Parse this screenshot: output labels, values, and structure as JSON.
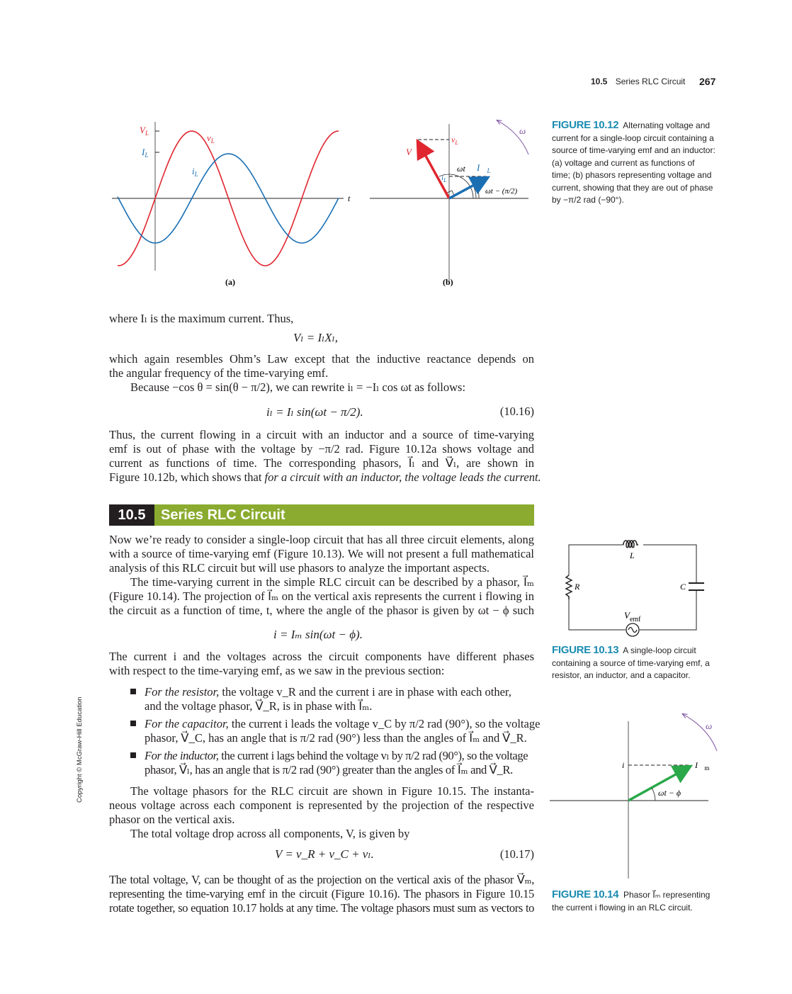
{
  "header": {
    "section": "10.5",
    "title": "Series RLC Circuit",
    "page": "267"
  },
  "fig1012": {
    "labels": {
      "VL": "V_L",
      "IL": "I_L",
      "vL": "v_L",
      "iL": "i_L",
      "t": "t",
      "a": "(a)",
      "b": "(b)",
      "omega": "ω",
      "vLb": "v_L",
      "VLvec": "V⃗_L",
      "ILvec": "I⃗_L",
      "iLb": "i_L",
      "wt": "ωt",
      "wtpi": "ωt − (π/2)"
    },
    "caption_label": "FIGURE",
    "caption_num": "10.12",
    "caption": [
      "Alternating voltage and",
      "current for a single-loop circuit containing a",
      "source of time-varying emf and an inductor:",
      "(a) voltage and current as functions of",
      "time; (b) phasors representing voltage and",
      "current, showing that they are out of phase",
      "by −π/2 rad (−90°)."
    ],
    "colors": {
      "voltage": "#e0262f",
      "current": "#1a6fb3",
      "omega": "#7b4fa0"
    }
  },
  "body": {
    "l1": "where Iₗ is the maximum current. Thus,",
    "eq1": "Vₗ = IₗXₗ,",
    "l2": "which again resembles Ohm’s Law except that the inductive reactance depends on",
    "l3": "the angular frequency of the time-varying emf.",
    "l4": "Because −cos θ = sin(θ − π/2), we can rewrite iₗ = −Iₗ cos ωt as follows:",
    "eq2": "iₗ = Iₗ sin(ωt − π/2).",
    "eq2num": "(10.16)",
    "l5": "Thus, the current flowing in a circuit with an inductor and a source of time-varying",
    "l6": "emf is out of phase with the voltage by −π/2 rad. Figure 10.12a shows voltage and",
    "l7": "current as functions of time. The corresponding phasors, I⃗ₗ and V⃗ₗ, are shown in",
    "l8a": "Figure 10.12b, which shows that ",
    "l8b": "for a circuit with an inductor, the voltage leads the current.",
    "s1": "Now we’re ready to consider a single-loop circuit that has all three circuit elements, along",
    "s2": "with a source of time-varying emf (Figure 10.13). We will not present a full mathematical",
    "s3": "analysis of this RLC circuit but will use phasors to analyze the important aspects.",
    "s4": "The time-varying current in the simple RLC circuit can be described by a phasor, I⃗ₘ",
    "s5": "(Figure 10.14). The projection of I⃗ₘ on the vertical axis represents the current i flowing in",
    "s6": "the circuit as a function of time, t, where the angle of the phasor is given by ωt − ϕ such that",
    "eq3": "i = Iₘ sin(ωt − ϕ).",
    "s7": "The current i and the voltages across the circuit components have different phases",
    "s8": "with respect to the time-varying emf, as we saw in the previous section:",
    "b1a": "For the resistor,",
    "b1b": " the voltage v_R and the current i are in phase with each other,",
    "b1c": "and the voltage phasor, V⃗_R, is in phase with I⃗ₘ.",
    "b2a": "For the capacitor,",
    "b2b": " the current i leads the voltage v_C by π/2 rad (90°), so the voltage",
    "b2c": "phasor, V⃗_C, has an angle that is π/2 rad (90°) less than the angles of I⃗ₘ and V⃗_R.",
    "b3a": "For the inductor,",
    "b3b": " the current i lags behind the voltage vₗ by π/2 rad (90°), so the voltage",
    "b3c": "phasor, V⃗ₗ, has an angle that is π/2 rad (90°) greater than the angles of I⃗ₘ and V⃗_R.",
    "s9": "The voltage phasors for the RLC circuit are shown in Figure 10.15. The instanta-",
    "s10": "neous voltage across each component is represented by the projection of the respective",
    "s11": "phasor on the vertical axis.",
    "s12": "The total voltage drop across all components, V, is given by",
    "eq4": "V = v_R + v_C + vₗ.",
    "eq4num": "(10.17)",
    "s13": "The total voltage, V, can be thought of as the projection on the vertical axis of the phasor V⃗ₘ,",
    "s14": "representing the time-varying emf in the circuit (Figure 10.16). The phasors in Figure 10.15",
    "s15": "rotate together, so equation 10.17 holds at any time. The voltage phasors must sum as vectors to"
  },
  "fig1013": {
    "labels": {
      "L": "L",
      "R": "R",
      "C": "C",
      "V": "V",
      "emf": "emf"
    },
    "caption_label": "FIGURE",
    "caption_num": "10.13",
    "caption": [
      "A single-loop circuit",
      "containing a source of time-varying emf, a",
      "resistor, an inductor, and a capacitor."
    ]
  },
  "fig1014": {
    "labels": {
      "i": "i",
      "Im": "I⃗ₘ",
      "omega": "ω",
      "angle": "ωt − ϕ"
    },
    "caption_label": "FIGURE",
    "caption_num": "10.14",
    "caption": [
      "Phasor I⃗ₘ representing",
      "the current i flowing in an RLC circuit."
    ],
    "colors": {
      "phasor": "#2aa84a",
      "omega": "#7b4fa0"
    }
  },
  "copyright": "Copyright © McGraw-Hill Education",
  "colors": {
    "accent_green": "#8aab2f",
    "figure_blue": "#1b8cb0",
    "section_dark": "#231f20"
  }
}
